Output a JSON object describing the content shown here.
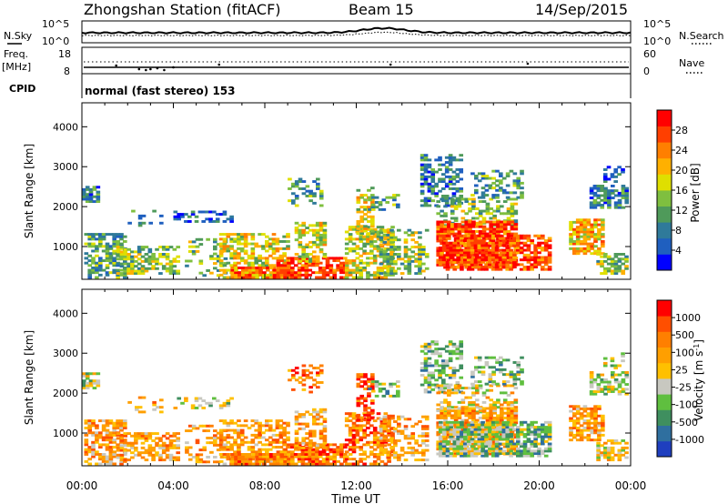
{
  "header": {
    "station": "Zhongshan Station (fitACF)",
    "beam": "Beam 15",
    "date": "14/Sep/2015"
  },
  "panels": {
    "nsky": {
      "label": "N.Sky",
      "ticks": [
        "10^5",
        "10^0"
      ],
      "right_ticks": [
        "10^5",
        "10^0"
      ],
      "right_label": "N.Search"
    },
    "freq": {
      "label_line1": "Freq.",
      "label_line2": "[MHz]",
      "ticks": [
        "18",
        "8"
      ],
      "right_ticks": [
        "60",
        "0"
      ],
      "right_label": "Nave"
    },
    "cpid": {
      "label": "CPID",
      "text": "normal (fast stereo) 153"
    }
  },
  "chart_data": [
    {
      "type": "heatmap",
      "name": "power",
      "ylabel": "Slant Range [km]",
      "yticks": [
        "4000",
        "3000",
        "2000",
        "1000"
      ],
      "ylim": [
        180,
        4600
      ],
      "xlabel": "Time UT",
      "xticks": [
        "00:00",
        "04:00",
        "08:00",
        "12:00",
        "16:00",
        "20:00",
        "00:00"
      ],
      "xlim_hours": [
        0,
        24
      ],
      "colorbar": {
        "label": "Power [dB]",
        "ticks": [
          "28",
          "24",
          "20",
          "16",
          "12",
          "8",
          "4"
        ],
        "colors": [
          "#0000ff",
          "#1f5fbf",
          "#2f7a9a",
          "#4f9a5a",
          "#7fbf3f",
          "#dfdf00",
          "#ffb000",
          "#ff7f00",
          "#ff3f00",
          "#ff0000"
        ]
      }
    },
    {
      "type": "heatmap",
      "name": "velocity",
      "ylabel": "Slant Range [km]",
      "yticks": [
        "4000",
        "3000",
        "2000",
        "1000"
      ],
      "ylim": [
        180,
        4600
      ],
      "xlabel": "Time UT",
      "xticks": [
        "00:00",
        "04:00",
        "08:00",
        "12:00",
        "16:00",
        "20:00",
        "00:00"
      ],
      "xlim_hours": [
        0,
        24
      ],
      "colorbar": {
        "label": "Velocity [m s-1]",
        "ticks": [
          "1000",
          "500",
          "100",
          "25",
          "-25",
          "-100",
          "-500",
          "-1000"
        ],
        "colors": [
          "#1f3fbf",
          "#2f6f9f",
          "#3f8f5f",
          "#5fbf3f",
          "#c8c8c0",
          "#ffc000",
          "#ff9f00",
          "#ff7f00",
          "#ff4f00",
          "#ff0000"
        ]
      }
    }
  ]
}
